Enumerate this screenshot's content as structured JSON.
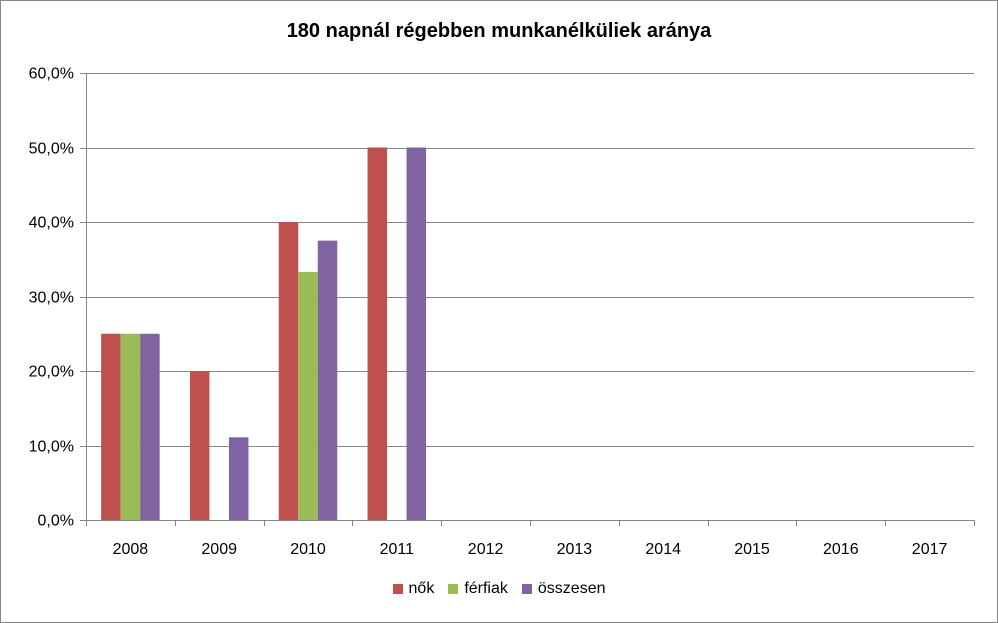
{
  "chart_data": {
    "type": "bar",
    "title": "180 napnál régebben munkanélküliek aránya",
    "xlabel": "",
    "ylabel": "",
    "categories": [
      "2008",
      "2009",
      "2010",
      "2011",
      "2012",
      "2013",
      "2014",
      "2015",
      "2016",
      "2017"
    ],
    "series": [
      {
        "name": "nők",
        "color": "#C0504D",
        "values": [
          25.0,
          20.0,
          40.0,
          50.0,
          null,
          null,
          null,
          null,
          null,
          null
        ]
      },
      {
        "name": "férfiak",
        "color": "#9BBB59",
        "values": [
          25.0,
          null,
          33.3,
          null,
          null,
          null,
          null,
          null,
          null,
          null
        ]
      },
      {
        "name": "összesen",
        "color": "#8064A2",
        "values": [
          25.0,
          11.1,
          37.5,
          50.0,
          null,
          null,
          null,
          null,
          null,
          null
        ]
      }
    ],
    "ylim": [
      0,
      60
    ],
    "yticks": [
      0,
      10,
      20,
      30,
      40,
      50,
      60
    ],
    "ytick_labels": [
      "0,0%",
      "10,0%",
      "20,0%",
      "30,0%",
      "40,0%",
      "50,0%",
      "60,0%"
    ],
    "grid": true,
    "legend_position": "bottom"
  }
}
